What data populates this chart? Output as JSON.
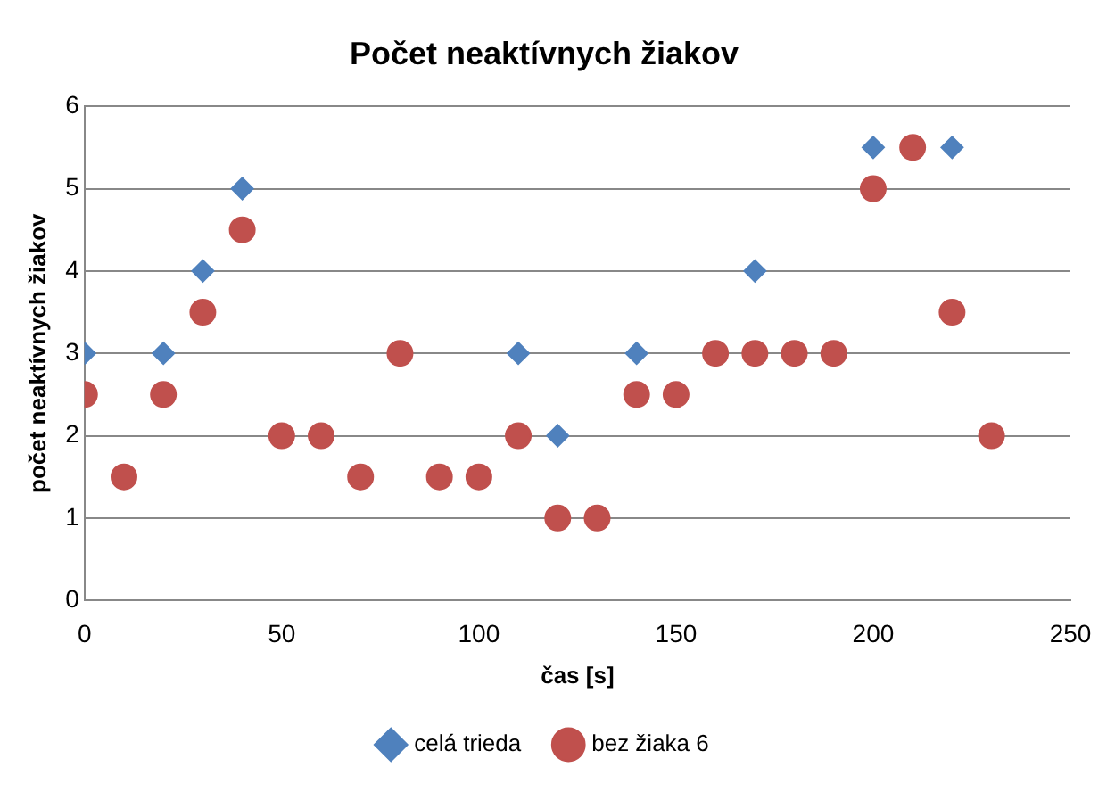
{
  "chart_data": {
    "type": "scatter",
    "title": "Počet neaktívnych žiakov",
    "xlabel": "čas [s]",
    "ylabel": "počet neaktívnych žiakov",
    "series": [
      {
        "name": "celá trieda",
        "color": "#4f81bd",
        "marker": "diamond",
        "x": [
          0,
          20,
          30,
          40,
          110,
          120,
          140,
          170,
          200,
          220
        ],
        "values": [
          3,
          3,
          4,
          5,
          3,
          2,
          3,
          4,
          5.5,
          5.5
        ]
      },
      {
        "name": "bez žiaka 6",
        "color": "#c0504d",
        "marker": "circle",
        "x": [
          0,
          10,
          20,
          30,
          40,
          50,
          60,
          70,
          80,
          90,
          100,
          110,
          120,
          130,
          140,
          150,
          160,
          170,
          180,
          190,
          200,
          210,
          220,
          230
        ],
        "values": [
          2.5,
          1.5,
          2.5,
          3.5,
          4.5,
          2,
          2,
          1.5,
          3,
          1.5,
          1.5,
          2,
          1,
          1,
          2.5,
          2.5,
          3,
          3,
          3,
          3,
          5,
          5.5,
          3.5,
          2
        ]
      }
    ],
    "xlim": [
      0,
      250
    ],
    "xticks": [
      0,
      50,
      100,
      150,
      200,
      250
    ],
    "ylim": [
      0,
      6
    ],
    "yticks": [
      0,
      1,
      2,
      3,
      4,
      5,
      6
    ],
    "grid": "y",
    "legend": "bottom"
  }
}
